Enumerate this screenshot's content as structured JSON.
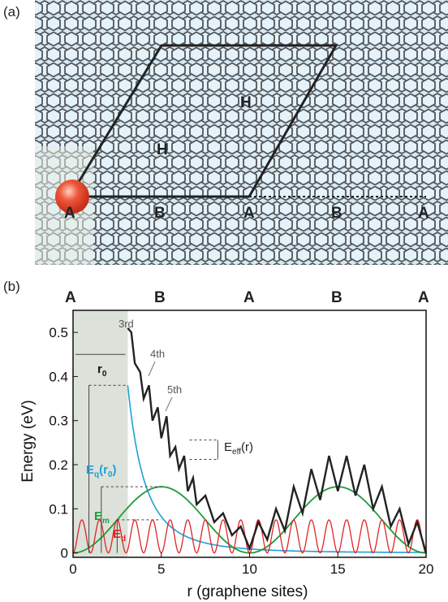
{
  "panel_a": {
    "label": "(a)",
    "cell_labels": [
      "H",
      "H"
    ],
    "site_labels": [
      "A",
      "B",
      "A",
      "B",
      "A"
    ],
    "colors": {
      "lattice_bg": "#cfe7f5",
      "lattice_line": "#5a5a5a",
      "atom": "#e8412c"
    }
  },
  "panel_b": {
    "label": "(b)",
    "top_labels": [
      "A",
      "B",
      "A",
      "B",
      "A"
    ],
    "annotations": {
      "r0": "r",
      "r0_sub": "0",
      "eq": "E",
      "eq_sub": "q",
      "eq_arg": "(r",
      "eq_arg_sub": "0",
      "eq_close": ")",
      "em": "E",
      "em_sub": "m",
      "ed": "E",
      "ed_sub": "d",
      "eeff": "E",
      "eeff_sub": "eff",
      "eeff_arg": "(r)",
      "third": "3rd",
      "fourth": "4th",
      "fifth": "5th"
    }
  },
  "chart_data": {
    "type": "line",
    "xlabel": "r (graphene sites)",
    "ylabel": "Energy (eV)",
    "xlim": [
      0,
      20
    ],
    "ylim": [
      -0.01,
      0.55
    ],
    "xticks": [
      "0",
      "5",
      "10",
      "15",
      "20"
    ],
    "yticks": [
      "0",
      "0.1",
      "0.2",
      "0.3",
      "0.4",
      "0.5"
    ],
    "shaded_region_x": [
      0,
      3.1
    ],
    "grid": false,
    "series": [
      {
        "name": "E_eff(r)",
        "color": "#222222",
        "x": [
          3.1,
          3.3,
          3.5,
          3.8,
          4.0,
          4.3,
          4.5,
          4.8,
          5.0,
          5.3,
          5.5,
          5.8,
          6.0,
          6.3,
          6.5,
          6.8,
          7.0,
          7.5,
          8.0,
          8.5,
          9.0,
          9.5,
          10.0,
          10.5,
          11.0,
          11.5,
          12.0,
          12.5,
          13.0,
          13.5,
          14.0,
          14.5,
          15.0,
          15.5,
          16.0,
          16.5,
          17.0,
          17.5,
          18.0,
          18.5,
          19.0,
          19.5,
          20.0
        ],
        "y": [
          0.51,
          0.5,
          0.43,
          0.41,
          0.35,
          0.38,
          0.3,
          0.33,
          0.26,
          0.31,
          0.22,
          0.24,
          0.19,
          0.22,
          0.14,
          0.17,
          0.11,
          0.13,
          0.07,
          0.09,
          0.04,
          0.06,
          0.01,
          0.07,
          0.03,
          0.1,
          0.05,
          0.15,
          0.09,
          0.19,
          0.12,
          0.22,
          0.14,
          0.22,
          0.13,
          0.2,
          0.1,
          0.15,
          0.06,
          0.1,
          0.02,
          0.07,
          0.0
        ]
      },
      {
        "name": "E_q(r_0)",
        "color": "#1f9fd8"
      },
      {
        "name": "E_m",
        "color": "#1f9a3a"
      },
      {
        "name": "E_d",
        "color": "#e02424"
      }
    ],
    "levels": {
      "E_q_at_r0": 0.38,
      "E_m_peak": 0.15,
      "E_d_peak": 0.075
    }
  }
}
